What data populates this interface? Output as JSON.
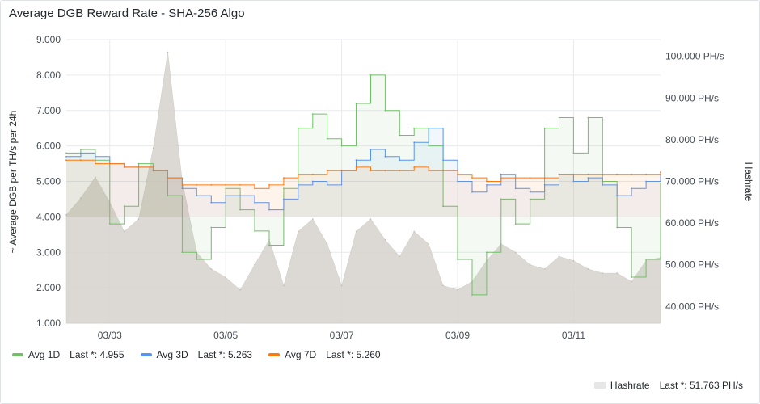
{
  "panel": {
    "title": "Average DGB Reward Rate - SHA-256 Algo"
  },
  "chart_data": {
    "type": "line",
    "title": "Average DGB Reward Rate - SHA-256 Algo",
    "ylabel": "~ Average DGB per TH/s per 24h",
    "y2label": "Hashrate",
    "ylim": [
      1.0,
      9.0
    ],
    "y2lim": [
      36.0,
      104.0
    ],
    "yticks": [
      "1.000",
      "2.000",
      "3.000",
      "4.000",
      "5.000",
      "6.000",
      "7.000",
      "8.000",
      "9.000"
    ],
    "y2ticks": [
      "40.000 PH/s",
      "50.000 PH/s",
      "60.000 PH/s",
      "70.000 PH/s",
      "80.000 PH/s",
      "90.000 PH/s",
      "100.000 PH/s"
    ],
    "xticks": [
      "03/03",
      "03/05",
      "03/07",
      "03/09",
      "03/11"
    ],
    "xlim": [
      "03/02 06:00",
      "03/12 12:00"
    ],
    "grid": true,
    "legend_position": "bottom-left",
    "series": [
      {
        "name": "Avg 1D",
        "color": "#73bf69",
        "axis": "left",
        "legend_last": "Last *: 4.955",
        "x": [
          "03/02 06:00",
          "03/02 12:00",
          "03/02 18:00",
          "03/03 00:00",
          "03/03 06:00",
          "03/03 12:00",
          "03/03 18:00",
          "03/04 00:00",
          "03/04 06:00",
          "03/04 12:00",
          "03/04 18:00",
          "03/05 00:00",
          "03/05 06:00",
          "03/05 12:00",
          "03/05 18:00",
          "03/06 00:00",
          "03/06 06:00",
          "03/06 12:00",
          "03/06 18:00",
          "03/07 00:00",
          "03/07 06:00",
          "03/07 12:00",
          "03/07 18:00",
          "03/08 00:00",
          "03/08 06:00",
          "03/08 12:00",
          "03/08 18:00",
          "03/09 00:00",
          "03/09 06:00",
          "03/09 12:00",
          "03/09 18:00",
          "03/10 00:00",
          "03/10 06:00",
          "03/10 12:00",
          "03/10 18:00",
          "03/11 00:00",
          "03/11 06:00",
          "03/11 12:00",
          "03/11 18:00",
          "03/12 00:00",
          "03/12 06:00",
          "03/12 12:00"
        ],
        "values": [
          5.8,
          5.9,
          5.6,
          3.8,
          4.3,
          5.5,
          5.3,
          4.6,
          3.0,
          2.8,
          3.7,
          4.8,
          4.2,
          3.6,
          3.2,
          4.8,
          6.5,
          6.9,
          6.2,
          6.0,
          7.2,
          8.0,
          7.0,
          6.3,
          6.5,
          6.0,
          4.3,
          2.8,
          1.8,
          3.0,
          4.5,
          3.8,
          4.5,
          6.5,
          6.8,
          5.8,
          6.8,
          5.0,
          3.7,
          2.3,
          2.8,
          4.95
        ]
      },
      {
        "name": "Avg 3D",
        "color": "#5794f2",
        "axis": "left",
        "legend_last": "Last *: 5.263",
        "x": [
          "03/02 06:00",
          "03/02 12:00",
          "03/02 18:00",
          "03/03 00:00",
          "03/03 06:00",
          "03/03 12:00",
          "03/03 18:00",
          "03/04 00:00",
          "03/04 06:00",
          "03/04 12:00",
          "03/04 18:00",
          "03/05 00:00",
          "03/05 06:00",
          "03/05 12:00",
          "03/05 18:00",
          "03/06 00:00",
          "03/06 06:00",
          "03/06 12:00",
          "03/06 18:00",
          "03/07 00:00",
          "03/07 06:00",
          "03/07 12:00",
          "03/07 18:00",
          "03/08 00:00",
          "03/08 06:00",
          "03/08 12:00",
          "03/08 18:00",
          "03/09 00:00",
          "03/09 06:00",
          "03/09 12:00",
          "03/09 18:00",
          "03/10 00:00",
          "03/10 06:00",
          "03/10 12:00",
          "03/10 18:00",
          "03/11 00:00",
          "03/11 06:00",
          "03/11 12:00",
          "03/11 18:00",
          "03/12 00:00",
          "03/12 06:00",
          "03/12 12:00"
        ],
        "values": [
          5.7,
          5.8,
          5.7,
          5.5,
          5.4,
          5.4,
          5.3,
          5.1,
          4.8,
          4.6,
          4.4,
          4.6,
          4.6,
          4.4,
          4.2,
          4.5,
          4.9,
          5.0,
          4.9,
          5.3,
          5.6,
          5.9,
          5.7,
          5.6,
          6.1,
          6.5,
          5.6,
          5.0,
          4.7,
          4.9,
          5.2,
          4.8,
          4.7,
          4.9,
          5.2,
          5.0,
          5.1,
          4.9,
          4.6,
          4.8,
          5.0,
          5.26
        ]
      },
      {
        "name": "Avg 7D",
        "color": "#ff780a",
        "axis": "left",
        "legend_last": "Last *: 5.260",
        "x": [
          "03/02 06:00",
          "03/02 12:00",
          "03/02 18:00",
          "03/03 00:00",
          "03/03 06:00",
          "03/03 12:00",
          "03/03 18:00",
          "03/04 00:00",
          "03/04 06:00",
          "03/04 12:00",
          "03/04 18:00",
          "03/05 00:00",
          "03/05 06:00",
          "03/05 12:00",
          "03/05 18:00",
          "03/06 00:00",
          "03/06 06:00",
          "03/06 12:00",
          "03/06 18:00",
          "03/07 00:00",
          "03/07 06:00",
          "03/07 12:00",
          "03/07 18:00",
          "03/08 00:00",
          "03/08 06:00",
          "03/08 12:00",
          "03/08 18:00",
          "03/09 00:00",
          "03/09 06:00",
          "03/09 12:00",
          "03/09 18:00",
          "03/10 00:00",
          "03/10 06:00",
          "03/10 12:00",
          "03/10 18:00",
          "03/11 00:00",
          "03/11 06:00",
          "03/11 12:00",
          "03/11 18:00",
          "03/12 00:00",
          "03/12 06:00",
          "03/12 12:00"
        ],
        "values": [
          5.6,
          5.6,
          5.5,
          5.5,
          5.4,
          5.4,
          5.3,
          5.1,
          4.9,
          4.9,
          4.9,
          4.9,
          4.9,
          4.8,
          4.9,
          5.1,
          5.2,
          5.2,
          5.3,
          5.3,
          5.4,
          5.3,
          5.3,
          5.3,
          5.4,
          5.3,
          5.3,
          5.2,
          5.1,
          5.0,
          5.1,
          5.1,
          5.1,
          5.1,
          5.2,
          5.2,
          5.2,
          5.2,
          5.2,
          5.2,
          5.2,
          5.26
        ]
      },
      {
        "name": "Hashrate",
        "color": "#e6e6e6",
        "axis": "right",
        "style": "area",
        "legend_last": "Last *: 51.763 PH/s",
        "x": [
          "03/02 06:00",
          "03/02 12:00",
          "03/02 18:00",
          "03/03 00:00",
          "03/03 06:00",
          "03/03 12:00",
          "03/03 18:00",
          "03/04 00:00",
          "03/04 06:00",
          "03/04 12:00",
          "03/04 18:00",
          "03/05 00:00",
          "03/05 06:00",
          "03/05 12:00",
          "03/05 18:00",
          "03/06 00:00",
          "03/06 06:00",
          "03/06 12:00",
          "03/06 18:00",
          "03/07 00:00",
          "03/07 06:00",
          "03/07 12:00",
          "03/07 18:00",
          "03/08 00:00",
          "03/08 06:00",
          "03/08 12:00",
          "03/08 18:00",
          "03/09 00:00",
          "03/09 06:00",
          "03/09 12:00",
          "03/09 18:00",
          "03/10 00:00",
          "03/10 06:00",
          "03/10 12:00",
          "03/10 18:00",
          "03/11 00:00",
          "03/11 06:00",
          "03/11 12:00",
          "03/11 18:00",
          "03/12 00:00",
          "03/12 06:00",
          "03/12 12:00"
        ],
        "values": [
          62,
          66,
          71,
          65,
          58,
          61,
          78,
          101,
          70,
          53,
          49,
          47,
          44,
          50,
          56,
          45,
          58,
          61,
          55,
          45,
          58,
          61,
          56,
          52,
          58,
          55,
          45,
          44,
          46,
          51,
          55,
          53,
          50,
          49,
          52,
          51,
          49,
          48,
          48,
          46,
          51,
          51.76
        ]
      }
    ]
  },
  "legend": {
    "avg1d": {
      "name": "Avg 1D",
      "last": "Last *: 4.955",
      "color": "#73bf69"
    },
    "avg3d": {
      "name": "Avg 3D",
      "last": "Last *: 5.263",
      "color": "#5794f2"
    },
    "avg7d": {
      "name": "Avg 7D",
      "last": "Last *: 5.260",
      "color": "#ff780a"
    },
    "hashrate": {
      "name": "Hashrate",
      "last": "Last *: 51.763 PH/s",
      "color": "#e6e6e6"
    }
  }
}
